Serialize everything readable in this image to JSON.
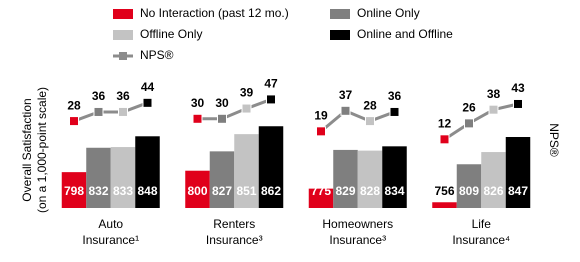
{
  "chart_data": {
    "type": "bar",
    "categories": [
      [
        "Auto",
        "Insurance¹"
      ],
      [
        "Renters",
        "Insurance³"
      ],
      [
        "Homeowners",
        "Insurance³"
      ],
      [
        "Life",
        "Insurance⁴"
      ]
    ],
    "y_label": [
      "Overall Satisfaction",
      "(on a 1,000-point scale)"
    ],
    "y2_label": "NPS®",
    "series": [
      {
        "name": "No Interaction (past 12 mo.)",
        "color": "#e0001b",
        "values": [
          798,
          800,
          775,
          756
        ]
      },
      {
        "name": "Online Only",
        "color": "#7f7f7f",
        "values": [
          832,
          827,
          829,
          809
        ]
      },
      {
        "name": "Offline Only",
        "color": "#c3c3c3",
        "values": [
          833,
          851,
          828,
          826
        ]
      },
      {
        "name": "Online and Offline",
        "color": "#000000",
        "values": [
          848,
          862,
          834,
          847
        ]
      }
    ],
    "line_series": {
      "name": "NPS®",
      "color": "#8c8c8c",
      "axis": "y2",
      "values": [
        [
          28,
          36,
          36,
          44
        ],
        [
          30,
          30,
          39,
          47
        ],
        [
          19,
          37,
          28,
          36
        ],
        [
          12,
          26,
          38,
          43
        ]
      ]
    },
    "ylim": [
      748,
      900
    ],
    "y2lim": [
      0,
      50
    ]
  }
}
